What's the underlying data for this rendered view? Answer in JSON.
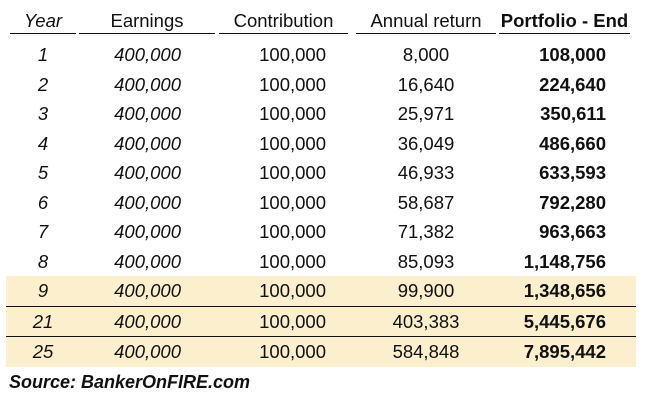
{
  "table": {
    "headers": {
      "year": "Year",
      "earnings": "Earnings",
      "contribution": "Contribution",
      "annual_return": "Annual return",
      "portfolio_end": "Portfolio - End"
    },
    "rows": [
      {
        "year": "1",
        "earnings": "400,000",
        "contribution": "100,000",
        "annual_return": "8,000",
        "portfolio_end": "108,000",
        "highlighted": false
      },
      {
        "year": "2",
        "earnings": "400,000",
        "contribution": "100,000",
        "annual_return": "16,640",
        "portfolio_end": "224,640",
        "highlighted": false
      },
      {
        "year": "3",
        "earnings": "400,000",
        "contribution": "100,000",
        "annual_return": "25,971",
        "portfolio_end": "350,611",
        "highlighted": false
      },
      {
        "year": "4",
        "earnings": "400,000",
        "contribution": "100,000",
        "annual_return": "36,049",
        "portfolio_end": "486,660",
        "highlighted": false
      },
      {
        "year": "5",
        "earnings": "400,000",
        "contribution": "100,000",
        "annual_return": "46,933",
        "portfolio_end": "633,593",
        "highlighted": false
      },
      {
        "year": "6",
        "earnings": "400,000",
        "contribution": "100,000",
        "annual_return": "58,687",
        "portfolio_end": "792,280",
        "highlighted": false
      },
      {
        "year": "7",
        "earnings": "400,000",
        "contribution": "100,000",
        "annual_return": "71,382",
        "portfolio_end": "963,663",
        "highlighted": false
      },
      {
        "year": "8",
        "earnings": "400,000",
        "contribution": "100,000",
        "annual_return": "85,093",
        "portfolio_end": "1,148,756",
        "highlighted": false
      },
      {
        "year": "9",
        "earnings": "400,000",
        "contribution": "100,000",
        "annual_return": "99,900",
        "portfolio_end": "1,348,656",
        "highlighted": true
      },
      {
        "year": "21",
        "earnings": "400,000",
        "contribution": "100,000",
        "annual_return": "403,383",
        "portfolio_end": "5,445,676",
        "highlighted": true
      },
      {
        "year": "25",
        "earnings": "400,000",
        "contribution": "100,000",
        "annual_return": "584,848",
        "portfolio_end": "7,895,442",
        "highlighted": true
      }
    ]
  },
  "source": "Source: BankerOnFIRE.com",
  "colors": {
    "highlight": "#fcefcd",
    "text": "#111111",
    "rule": "#111111"
  }
}
